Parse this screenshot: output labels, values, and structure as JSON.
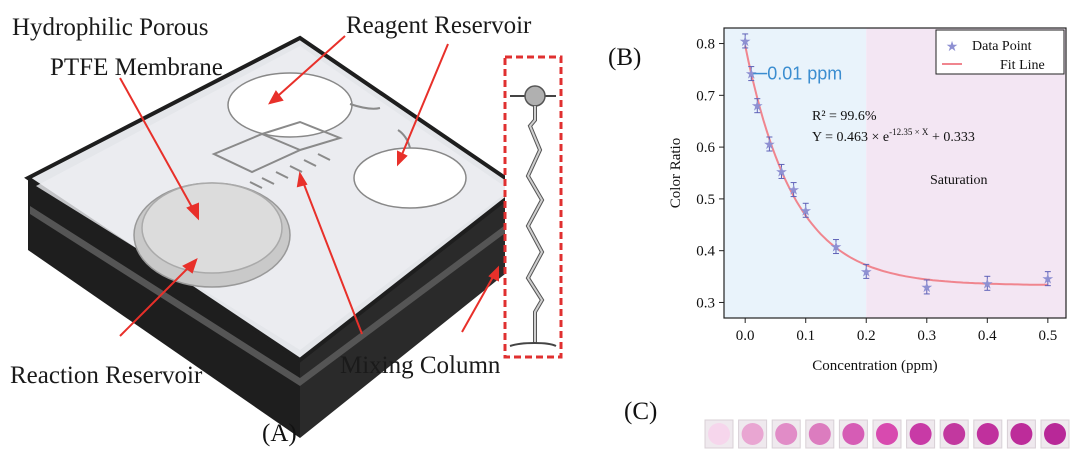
{
  "panel_a": {
    "label": "(A)",
    "annotations": {
      "membrane_line1": "Hydrophilic Porous",
      "membrane_line2": "PTFE Membrane",
      "reagent": "Reagent Reservoir",
      "reaction": "Reaction Reservoir",
      "mixing": "Mixing Column"
    },
    "colors": {
      "arrow": "#e8302a",
      "inset_border": "#e03030",
      "device_frame": "#1e1e1e"
    }
  },
  "panel_b": {
    "label": "(B)"
  },
  "panel_c": {
    "label": "(C)",
    "wells": [
      {
        "color": "#f6d6ec"
      },
      {
        "color": "#e9a6d2"
      },
      {
        "color": "#e18cc7"
      },
      {
        "color": "#dc7cbf"
      },
      {
        "color": "#d65cb5"
      },
      {
        "color": "#d84aaf"
      },
      {
        "color": "#c83aa6"
      },
      {
        "color": "#c2389f"
      },
      {
        "color": "#c0309d"
      },
      {
        "color": "#bd2c9a"
      },
      {
        "color": "#b82898"
      }
    ]
  },
  "chart_data": {
    "type": "scatter",
    "xlabel": "Concentration (ppm)",
    "ylabel": "Color Ratio",
    "xlim": [
      -0.035,
      0.53
    ],
    "ylim": [
      0.27,
      0.83
    ],
    "x_ticks": [
      "0.0",
      "0.1",
      "0.2",
      "0.3",
      "0.4",
      "0.5"
    ],
    "y_ticks": [
      "0.3",
      "0.4",
      "0.5",
      "0.6",
      "0.7",
      "0.8"
    ],
    "x_tick_values": [
      0.0,
      0.1,
      0.2,
      0.3,
      0.4,
      0.5
    ],
    "y_tick_values": [
      0.3,
      0.4,
      0.5,
      0.6,
      0.7,
      0.8
    ],
    "series": [
      {
        "name": "Data Point",
        "x": [
          0.0,
          0.01,
          0.02,
          0.04,
          0.06,
          0.08,
          0.1,
          0.15,
          0.2,
          0.3,
          0.4,
          0.5
        ],
        "y": [
          0.805,
          0.742,
          0.68,
          0.606,
          0.553,
          0.518,
          0.478,
          0.408,
          0.36,
          0.33,
          0.337,
          0.346
        ],
        "color": "#8e90d2"
      },
      {
        "name": "Fit Line",
        "model": "exponential",
        "a": 0.463,
        "b": -12.35,
        "c": 0.333,
        "color": "#f0858e"
      }
    ],
    "annotations": {
      "lod": "0.01 ppm",
      "r2": "R² = 99.6%",
      "equation": "Y  = 0.463 × e",
      "equation_exponent": "-12.35 × X",
      "equation_tail": " + 0.333",
      "saturation": "Saturation"
    },
    "regions": [
      {
        "from": -0.035,
        "to": 0.2,
        "color": "#e9f3fb"
      },
      {
        "from": 0.2,
        "to": 0.53,
        "color": "#f3e6f3"
      }
    ],
    "legend": {
      "position": "top-right"
    },
    "grid": false
  }
}
